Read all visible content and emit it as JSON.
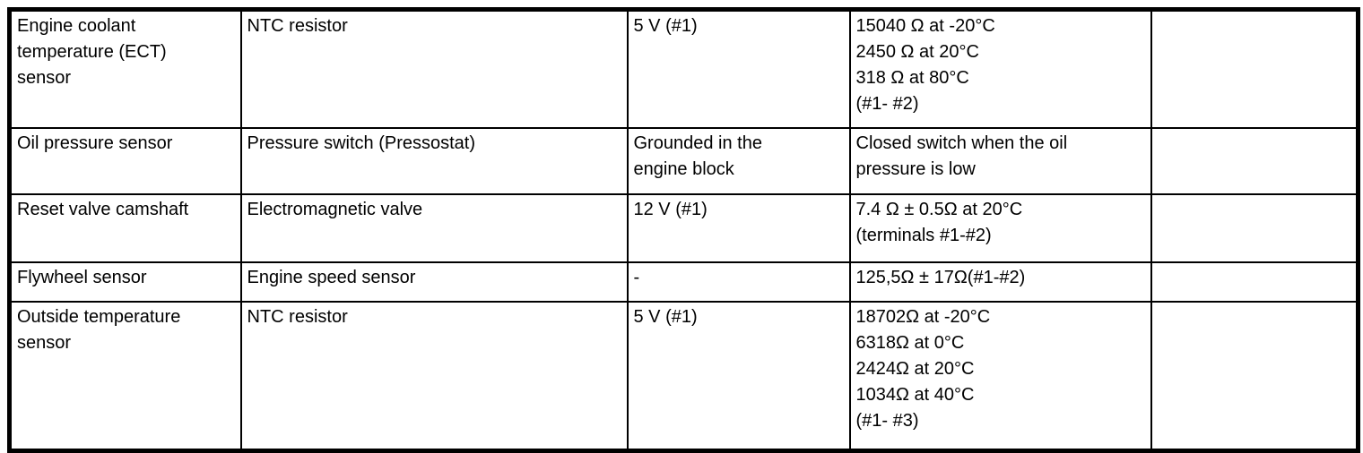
{
  "document": {
    "kind": "component-specification-table",
    "colors": {
      "border": "#000000",
      "text": "#000000",
      "background": "#ffffff"
    }
  },
  "table": {
    "rows": [
      {
        "cells": [
          [
            "Engine coolant",
            "temperature (ECT)",
            "sensor"
          ],
          [
            "NTC resistor"
          ],
          [
            "5 V (#1)"
          ],
          [
            "15040 Ω at -20°C",
            "2450 Ω at 20°C",
            "318 Ω at 80°C",
            "(#1- #2)"
          ],
          []
        ]
      },
      {
        "cells": [
          [
            "Oil pressure sensor"
          ],
          [
            "Pressure switch (Pressostat)"
          ],
          [
            "Grounded in the",
            "engine block"
          ],
          [
            "Closed switch when the oil",
            "pressure is low"
          ],
          []
        ]
      },
      {
        "cells": [
          [
            "Reset valve camshaft"
          ],
          [
            "Electromagnetic valve"
          ],
          [
            "12 V (#1)"
          ],
          [
            "7.4 Ω ± 0.5Ω at 20°C",
            "(terminals #1-#2)"
          ],
          []
        ]
      },
      {
        "cells": [
          [
            "Flywheel sensor"
          ],
          [
            "Engine speed sensor"
          ],
          [
            "-"
          ],
          [
            "125,5Ω ± 17Ω(#1-#2)"
          ],
          []
        ]
      },
      {
        "cells": [
          [
            "Outside temperature",
            "sensor"
          ],
          [
            "NTC resistor"
          ],
          [
            "5 V (#1)"
          ],
          [
            "18702Ω at -20°C",
            "6318Ω at 0°C",
            "2424Ω at 20°C",
            "1034Ω at 40°C",
            "(#1- #3)"
          ],
          []
        ]
      }
    ]
  }
}
